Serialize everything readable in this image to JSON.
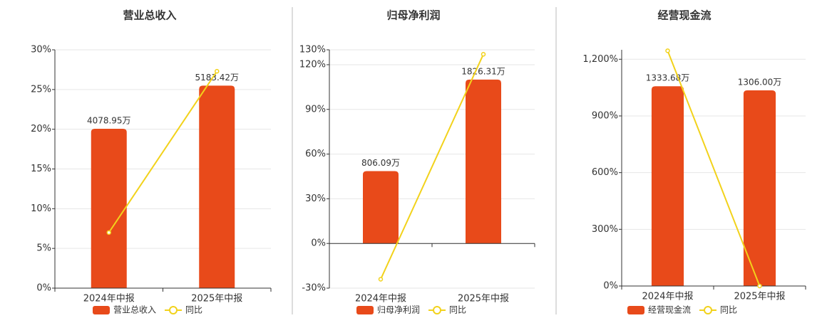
{
  "chart_data": [
    {
      "type": "bar_line",
      "title": "营业总收入",
      "categories": [
        "2024年中报",
        "2025年中报"
      ],
      "ylim": [
        0,
        30
      ],
      "yticks": [
        {
          "value": 0,
          "label": "0%"
        },
        {
          "value": 5,
          "label": "5%"
        },
        {
          "value": 10,
          "label": "10%"
        },
        {
          "value": 15,
          "label": "15%"
        },
        {
          "value": 20,
          "label": "20%"
        },
        {
          "value": 25,
          "label": "25%"
        },
        {
          "value": 30,
          "label": "30%"
        }
      ],
      "y2lim": [
        0,
        6100
      ],
      "grid": true,
      "series": [
        {
          "name": "营业总收入",
          "type": "bar",
          "axis": "y2",
          "color": "#e84a1a",
          "values": [
            4078.95,
            5183.42
          ],
          "value_labels": [
            "4078.95万",
            "5183.42万"
          ]
        },
        {
          "name": "同比",
          "type": "line",
          "color": "#f2d21b",
          "values": [
            7,
            27.3
          ]
        }
      ]
    },
    {
      "type": "bar_line",
      "title": "归母净利润",
      "categories": [
        "2024年中报",
        "2025年中报"
      ],
      "ylim": [
        -30,
        130
      ],
      "yticks": [
        {
          "value": -30,
          "label": "-30%"
        },
        {
          "value": 0,
          "label": "0%"
        },
        {
          "value": 30,
          "label": "30%"
        },
        {
          "value": 60,
          "label": "60%"
        },
        {
          "value": 90,
          "label": "90%"
        },
        {
          "value": 120,
          "label": "120%"
        },
        {
          "value": 130,
          "label": "130%"
        }
      ],
      "y2lim": [
        -498,
        2158
      ],
      "grid": true,
      "series": [
        {
          "name": "归母净利润",
          "type": "bar",
          "axis": "y2",
          "color": "#e84a1a",
          "values": [
            806.09,
            1826.31
          ],
          "value_labels": [
            "806.09万",
            "1826.31万"
          ]
        },
        {
          "name": "同比",
          "type": "line",
          "color": "#f2d21b",
          "values": [
            -24,
            127
          ]
        }
      ]
    },
    {
      "type": "bar_line",
      "title": "经营现金流",
      "categories": [
        "2024年中报",
        "2025年中报"
      ],
      "ylim": [
        0,
        1250
      ],
      "yticks": [
        {
          "value": 0,
          "label": "0%"
        },
        {
          "value": 300,
          "label": "300%"
        },
        {
          "value": 600,
          "label": "600%"
        },
        {
          "value": 900,
          "label": "900%"
        },
        {
          "value": 1200,
          "label": "1,200%"
        }
      ],
      "y2lim": [
        0,
        1577
      ],
      "grid": true,
      "series": [
        {
          "name": "经营现金流",
          "type": "bar",
          "axis": "y2",
          "color": "#e84a1a",
          "values": [
            1333.68,
            1306.0
          ],
          "value_labels": [
            "1333.68万",
            "1306.00万"
          ]
        },
        {
          "name": "同比",
          "type": "line",
          "color": "#f2d21b",
          "values": [
            1245,
            0
          ]
        }
      ]
    }
  ]
}
